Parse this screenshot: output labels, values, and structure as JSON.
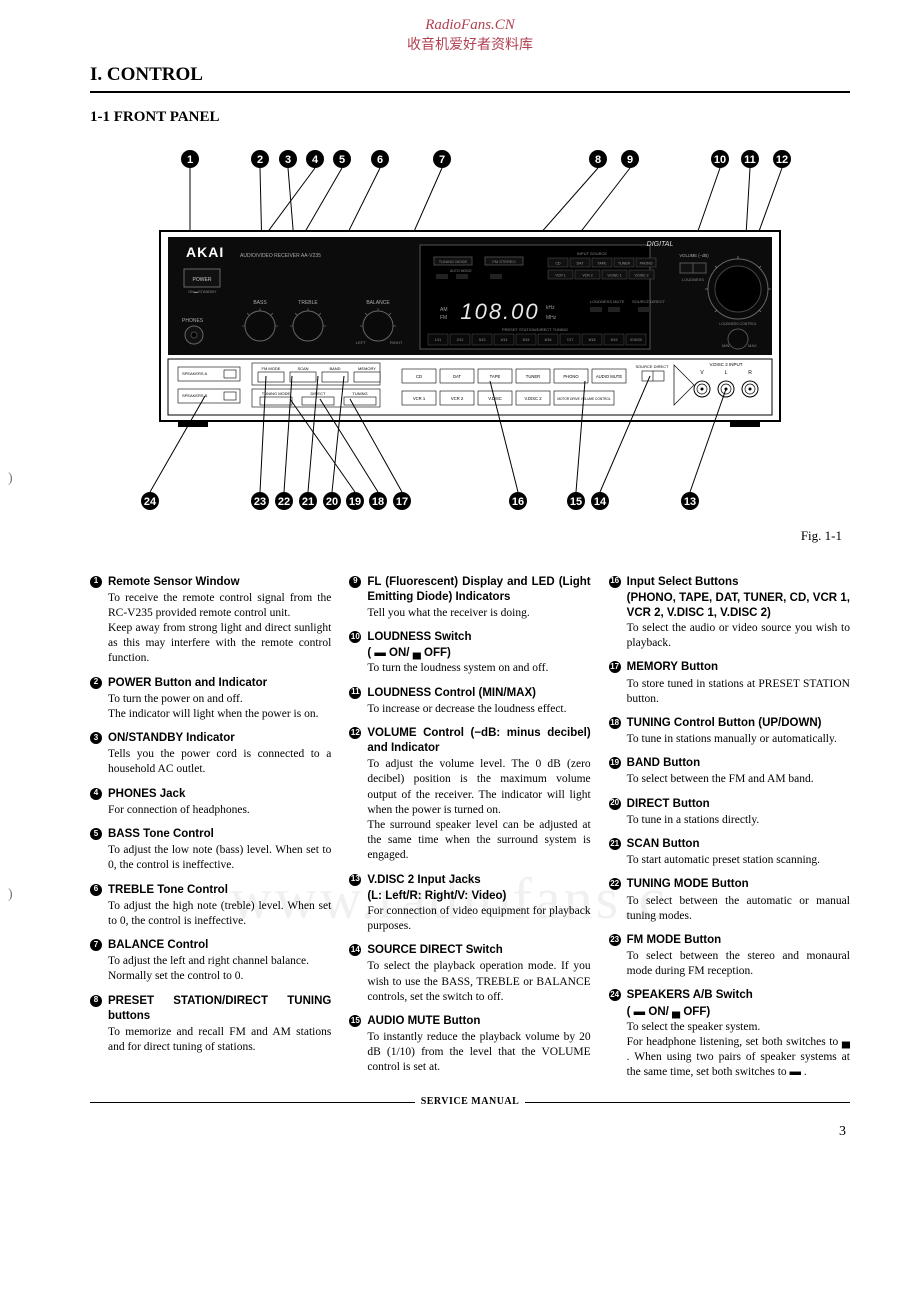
{
  "header": {
    "site": "RadioFans.CN",
    "cn": "收音机爱好者资料库"
  },
  "section": "I. CONTROL",
  "subsection": "1-1 FRONT PANEL",
  "fig_caption": "Fig. 1-1",
  "watermark": "www.radiofans.c",
  "footer": "SERVICE MANUAL",
  "page_num": "3",
  "panel": {
    "brand": "AKAI",
    "model_text": "AUDIO/VIDEO RECEIVER   AA-V235",
    "digital_text": "DIGITAL",
    "display_freq": "108.00",
    "display_khz": "kHz",
    "display_mhz": "MHz",
    "display_am": "AM",
    "display_fm": "FM",
    "labels_top": [
      "TUNING MODE",
      "FM STEREO",
      "INPUT SOURCE",
      "LOUDNESS"
    ],
    "labels_src_row1": [
      "CD",
      "DAT",
      "TAPE",
      "TUNER",
      "PHONO"
    ],
    "labels_src_row2": [
      "VCR 1",
      "VCR 2",
      "V.DISC 1",
      "V.DISC 2"
    ],
    "preset_label": "PRESET STATION/DIRECT TUNING",
    "preset_nums": [
      "1/11",
      "2/12",
      "3/13",
      "4/14",
      "5/15",
      "6/16",
      "7/17",
      "8/18",
      "9/19",
      "0/10/20"
    ],
    "power": "POWER",
    "phones": "PHONES",
    "bass": "BASS",
    "treble": "TREBLE",
    "balance": "BALANCE",
    "balance_l": "LEFT",
    "balance_r": "RIGHT",
    "btn_row2": [
      "CD",
      "DAT",
      "TAPE",
      "TUNER",
      "PHONO",
      "AUDIO MUTE"
    ],
    "btn_row3": [
      "VCR 1",
      "VCR 2",
      "V.DISC",
      "V.DISC 2",
      "MOTOR DRIVE VOLUME CONTROL"
    ],
    "fm_mode": "FM MODE",
    "scan": "SCAN",
    "band": "BAND",
    "memory": "MEMORY",
    "tuning_mode": "TUNING MODE",
    "direct": "DIRECT",
    "tuning": "TUNING",
    "speakers_a": "SPEAKERS A",
    "speakers_b": "SPEAKERS B",
    "on_off": "ON ▬ OFF",
    "vdisc2_in": "V.DISC 2 INPUT",
    "vlr": [
      "V",
      "L",
      "R"
    ],
    "source_direct": "SOURCE DIRECT",
    "volume_label": "VOLUME (−dB)",
    "loudness_ctl": "LOUDNESS CONTROL",
    "min": "MIN",
    "max": "MAX",
    "top_numbers": [
      "1",
      "2",
      "3",
      "4",
      "5",
      "6",
      "7",
      "8",
      "9",
      "10",
      "11",
      "12"
    ],
    "bottom_numbers": [
      "24",
      "23",
      "22",
      "21",
      "20",
      "19",
      "18",
      "17",
      "16",
      "15",
      "14",
      "13"
    ]
  },
  "items_col1": [
    {
      "n": "1",
      "title": "Remote Sensor Window",
      "body": "To receive the remote control signal from the RC-V235 provided remote control unit.\nKeep away from strong light and direct sunlight as this may interfere with the remote control function."
    },
    {
      "n": "2",
      "title": "POWER Button and Indicator",
      "body": "To turn the power on and off.\nThe indicator will light when the power is on."
    },
    {
      "n": "3",
      "title": "ON/STANDBY Indicator",
      "body": "Tells you the power cord is connected to a household AC outlet."
    },
    {
      "n": "4",
      "title": "PHONES Jack",
      "body": "For connection of headphones."
    },
    {
      "n": "5",
      "title": "BASS Tone Control",
      "body": "To adjust the low note (bass) level. When set to 0, the control is ineffective."
    },
    {
      "n": "6",
      "title": "TREBLE Tone Control",
      "body": "To adjust the high note (treble) level. When set to 0, the control is ineffective."
    },
    {
      "n": "7",
      "title": "BALANCE Control",
      "body": "To adjust the left and right channel balance.\nNormally set the control to 0."
    },
    {
      "n": "8",
      "title": "PRESET STATION/DIRECT TUNING buttons",
      "body": "To memorize and recall FM and AM stations and for direct tuning of stations."
    }
  ],
  "items_col2": [
    {
      "n": "9",
      "title": "FL (Fluorescent) Display and LED (Light Emitting Diode) Indicators",
      "body": "Tell you what the receiver is doing."
    },
    {
      "n": "10",
      "title": "LOUDNESS Switch",
      "sub": "( ▬ ON/ ▄ OFF)",
      "body": "To turn the loudness system on and off."
    },
    {
      "n": "11",
      "title": "LOUDNESS Control (MIN/MAX)",
      "body": "To increase or decrease the loudness effect."
    },
    {
      "n": "12",
      "title": "VOLUME Control (−dB: minus decibel) and Indicator",
      "body": "To adjust the volume level. The 0 dB (zero decibel) position is the maximum volume output of the receiver. The indicator will light when the power is turned on.\nThe surround speaker level can be adjusted at the same time when the surround system is engaged."
    },
    {
      "n": "13",
      "title": "V.DISC 2 Input Jacks",
      "sub": "(L: Left/R: Right/V: Video)",
      "body": "For connection of video equipment for playback purposes."
    },
    {
      "n": "14",
      "title": "SOURCE DIRECT Switch",
      "body": "To select the playback operation mode. If you wish to use the BASS, TREBLE or BALANCE controls, set the switch to off."
    },
    {
      "n": "15",
      "title": "AUDIO MUTE Button",
      "body": "To instantly reduce the playback volume by 20 dB (1/10) from the level that the VOLUME control is set at."
    }
  ],
  "items_col3": [
    {
      "n": "16",
      "title": "Input Select Buttons",
      "sub": "(PHONO, TAPE, DAT, TUNER, CD, VCR 1, VCR 2, V.DISC 1, V.DISC 2)",
      "body": "To select the audio or video source you wish to playback."
    },
    {
      "n": "17",
      "title": "MEMORY Button",
      "body": "To store tuned in stations at PRESET STATION button."
    },
    {
      "n": "18",
      "title": "TUNING Control Button (UP/DOWN)",
      "body": "To tune in stations manually or automatically."
    },
    {
      "n": "19",
      "title": "BAND Button",
      "body": "To select between the FM and AM band."
    },
    {
      "n": "20",
      "title": "DIRECT Button",
      "body": "To tune in a stations directly."
    },
    {
      "n": "21",
      "title": "SCAN Button",
      "body": "To start automatic preset station scanning."
    },
    {
      "n": "22",
      "title": "TUNING MODE Button",
      "body": "To select between the automatic or manual tuning modes."
    },
    {
      "n": "23",
      "title": "FM MODE Button",
      "body": "To select between the stereo and monaural mode during FM reception."
    },
    {
      "n": "24",
      "title": "SPEAKERS A/B Switch",
      "sub": "( ▬ ON/ ▄ OFF)",
      "body": "To select the speaker system.\nFor headphone listening, set both switches to ▄ . When using two pairs of speaker systems at the same time, set both switches to ▬ ."
    }
  ],
  "colors": {
    "accent": "#b04050",
    "text": "#000000",
    "bg": "#ffffff",
    "wm": "rgba(0,0,0,0.06)"
  }
}
